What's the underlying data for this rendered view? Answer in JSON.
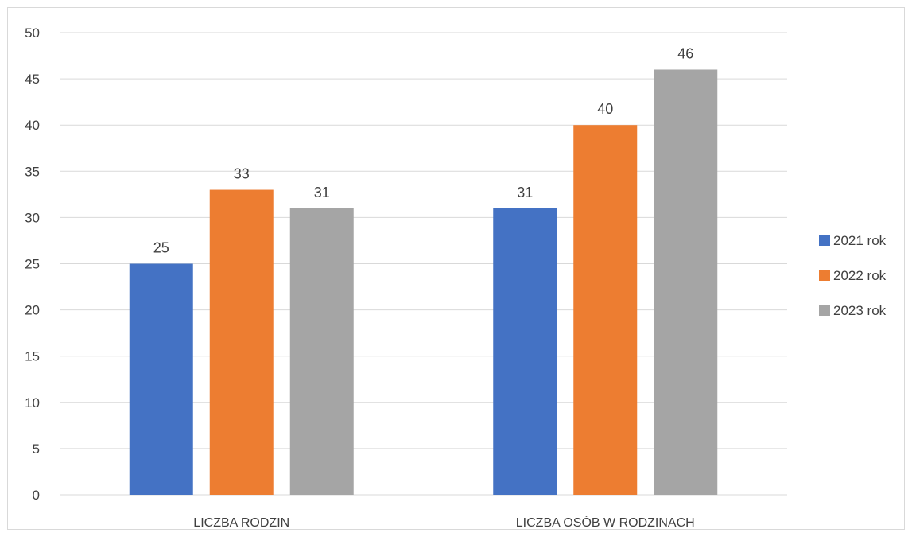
{
  "chart_data": {
    "type": "bar",
    "title": "",
    "xlabel": "",
    "ylabel": "",
    "categories": [
      "LICZBA RODZIN",
      "LICZBA OSÓB W RODZINACH"
    ],
    "series": [
      {
        "name": "2021 rok",
        "values": [
          25,
          31
        ],
        "color": "#4472c4"
      },
      {
        "name": "2022 rok",
        "values": [
          33,
          40
        ],
        "color": "#ed7d31"
      },
      {
        "name": "2023 rok",
        "values": [
          31,
          46
        ],
        "color": "#a5a5a5"
      }
    ],
    "ylim": [
      0,
      50
    ],
    "yticks": [
      0,
      5,
      10,
      15,
      20,
      25,
      30,
      35,
      40,
      45,
      50
    ],
    "grid": true,
    "gridline_color": "#d9d9d9",
    "data_labels": true,
    "legend_position": "right"
  }
}
